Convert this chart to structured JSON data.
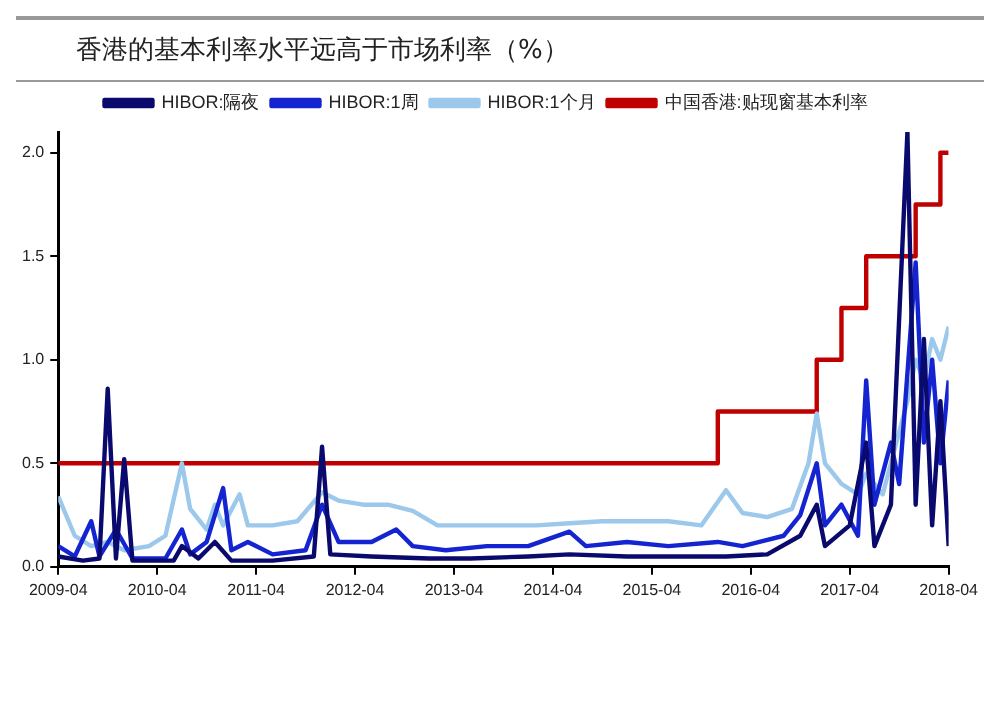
{
  "chart_data": {
    "type": "line",
    "title": "香港的基本利率水平远高于市场利率（%）",
    "xlim": [
      "2009-04",
      "2018-04"
    ],
    "xticks": [
      "2009-04",
      "2010-04",
      "2011-04",
      "2012-04",
      "2013-04",
      "2014-04",
      "2015-04",
      "2016-04",
      "2017-04",
      "2018-04"
    ],
    "ylim": [
      0,
      2.1
    ],
    "yticks": [
      {
        "value": 0,
        "label": "0.0"
      },
      {
        "value": 0.5,
        "label": "0.5"
      },
      {
        "value": 1,
        "label": "1.0"
      },
      {
        "value": 1.5,
        "label": "1.5"
      },
      {
        "value": 2,
        "label": "2.0"
      }
    ],
    "grid": false,
    "legend": "top",
    "marker": "none",
    "line_style": "solid",
    "series": [
      {
        "name": "HIBOR:隔夜",
        "color": "#0a0a6e",
        "x": [
          "2009-04",
          "2009-07",
          "2009-09",
          "2009-10",
          "2009-11",
          "2009-12",
          "2010-01",
          "2010-06",
          "2010-07",
          "2010-09",
          "2010-11",
          "2011-01",
          "2011-06",
          "2011-11",
          "2011-12",
          "2012-01",
          "2012-06",
          "2013-01",
          "2013-06",
          "2014-01",
          "2014-06",
          "2015-01",
          "2015-06",
          "2016-01",
          "2016-06",
          "2016-10",
          "2016-12",
          "2017-01",
          "2017-04",
          "2017-06",
          "2017-07",
          "2017-09",
          "2017-11",
          "2017-12",
          "2018-01",
          "2018-02",
          "2018-03",
          "2018-04"
        ],
        "values": [
          0.05,
          0.03,
          0.04,
          0.86,
          0.04,
          0.52,
          0.03,
          0.03,
          0.1,
          0.04,
          0.12,
          0.03,
          0.03,
          0.05,
          0.58,
          0.06,
          0.05,
          0.04,
          0.04,
          0.05,
          0.06,
          0.05,
          0.05,
          0.05,
          0.06,
          0.15,
          0.3,
          0.1,
          0.2,
          0.6,
          0.1,
          0.3,
          2.1,
          0.3,
          1.1,
          0.2,
          0.8,
          0.1
        ]
      },
      {
        "name": "HIBOR:1周",
        "color": "#1424d0",
        "x": [
          "2009-04",
          "2009-06",
          "2009-08",
          "2009-09",
          "2009-11",
          "2010-01",
          "2010-05",
          "2010-07",
          "2010-08",
          "2010-10",
          "2010-12",
          "2011-01",
          "2011-03",
          "2011-06",
          "2011-10",
          "2011-12",
          "2012-02",
          "2012-06",
          "2012-09",
          "2012-11",
          "2013-03",
          "2013-08",
          "2014-01",
          "2014-06",
          "2014-08",
          "2015-01",
          "2015-06",
          "2015-12",
          "2016-03",
          "2016-08",
          "2016-10",
          "2016-12",
          "2017-01",
          "2017-03",
          "2017-05",
          "2017-06",
          "2017-07",
          "2017-09",
          "2017-10",
          "2017-12",
          "2018-01",
          "2018-02",
          "2018-03",
          "2018-04"
        ],
        "values": [
          0.1,
          0.05,
          0.22,
          0.05,
          0.18,
          0.04,
          0.04,
          0.18,
          0.06,
          0.12,
          0.38,
          0.08,
          0.12,
          0.06,
          0.08,
          0.3,
          0.12,
          0.12,
          0.18,
          0.1,
          0.08,
          0.1,
          0.1,
          0.17,
          0.1,
          0.12,
          0.1,
          0.12,
          0.1,
          0.15,
          0.25,
          0.5,
          0.2,
          0.3,
          0.15,
          0.9,
          0.3,
          0.6,
          0.4,
          1.47,
          0.6,
          1.0,
          0.5,
          0.9
        ]
      },
      {
        "name": "HIBOR:1个月",
        "color": "#9cc8ec",
        "x": [
          "2009-04",
          "2009-06",
          "2009-08",
          "2009-10",
          "2009-12",
          "2010-03",
          "2010-05",
          "2010-07",
          "2010-08",
          "2010-10",
          "2010-11",
          "2010-12",
          "2011-02",
          "2011-03",
          "2011-06",
          "2011-09",
          "2011-12",
          "2012-02",
          "2012-05",
          "2012-08",
          "2012-11",
          "2013-02",
          "2013-06",
          "2013-10",
          "2014-02",
          "2014-06",
          "2014-10",
          "2015-02",
          "2015-06",
          "2015-10",
          "2016-01",
          "2016-03",
          "2016-06",
          "2016-09",
          "2016-11",
          "2016-12",
          "2017-01",
          "2017-03",
          "2017-05",
          "2017-06",
          "2017-08",
          "2017-09",
          "2017-11",
          "2017-12",
          "2018-01",
          "2018-02",
          "2018-03",
          "2018-04"
        ],
        "values": [
          0.34,
          0.15,
          0.1,
          0.12,
          0.08,
          0.1,
          0.15,
          0.5,
          0.28,
          0.18,
          0.3,
          0.2,
          0.35,
          0.2,
          0.2,
          0.22,
          0.36,
          0.32,
          0.3,
          0.3,
          0.27,
          0.2,
          0.2,
          0.2,
          0.2,
          0.21,
          0.22,
          0.22,
          0.22,
          0.2,
          0.37,
          0.26,
          0.24,
          0.28,
          0.5,
          0.74,
          0.5,
          0.4,
          0.35,
          0.45,
          0.35,
          0.5,
          0.8,
          1.0,
          0.9,
          1.1,
          1.0,
          1.16
        ]
      },
      {
        "name": "中国香港:贴现窗基本利率",
        "type": "step",
        "color": "#c00000",
        "x": [
          "2009-04",
          "2015-12",
          "2016-12",
          "2017-03",
          "2017-06",
          "2017-12",
          "2018-03",
          "2018-04"
        ],
        "values": [
          0.5,
          0.75,
          1.0,
          1.25,
          1.5,
          1.75,
          2.0,
          2.0
        ]
      }
    ]
  }
}
